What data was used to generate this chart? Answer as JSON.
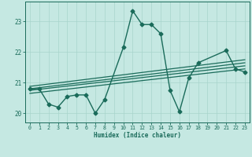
{
  "title": "",
  "xlabel": "Humidex (Indice chaleur)",
  "ylabel": "",
  "xlim": [
    -0.5,
    23.5
  ],
  "ylim": [
    19.7,
    23.65
  ],
  "xticks": [
    0,
    1,
    2,
    3,
    4,
    5,
    6,
    7,
    8,
    9,
    10,
    11,
    12,
    13,
    14,
    15,
    16,
    17,
    18,
    19,
    20,
    21,
    22,
    23
  ],
  "yticks": [
    20,
    21,
    22,
    23
  ],
  "background_color": "#c5e8e2",
  "grid_color": "#a8d4cc",
  "line_color": "#1a6b5a",
  "main_series": {
    "x": [
      0,
      1,
      2,
      3,
      4,
      5,
      6,
      7,
      8,
      10,
      11,
      12,
      13,
      14,
      15,
      16,
      17,
      18,
      21,
      22,
      23
    ],
    "y": [
      20.8,
      20.8,
      20.3,
      20.2,
      20.55,
      20.6,
      20.6,
      20.0,
      20.45,
      22.15,
      23.35,
      22.9,
      22.9,
      22.6,
      20.75,
      20.05,
      21.15,
      21.65,
      22.05,
      21.45,
      21.35
    ],
    "marker": "D",
    "markersize": 2.5,
    "linewidth": 1.0
  },
  "trend_lines": [
    {
      "x": [
        0,
        23
      ],
      "y": [
        20.8,
        21.65
      ]
    },
    {
      "x": [
        0,
        23
      ],
      "y": [
        20.75,
        21.55
      ]
    },
    {
      "x": [
        0,
        23
      ],
      "y": [
        20.88,
        21.75
      ]
    },
    {
      "x": [
        0,
        23
      ],
      "y": [
        20.65,
        21.45
      ]
    }
  ]
}
